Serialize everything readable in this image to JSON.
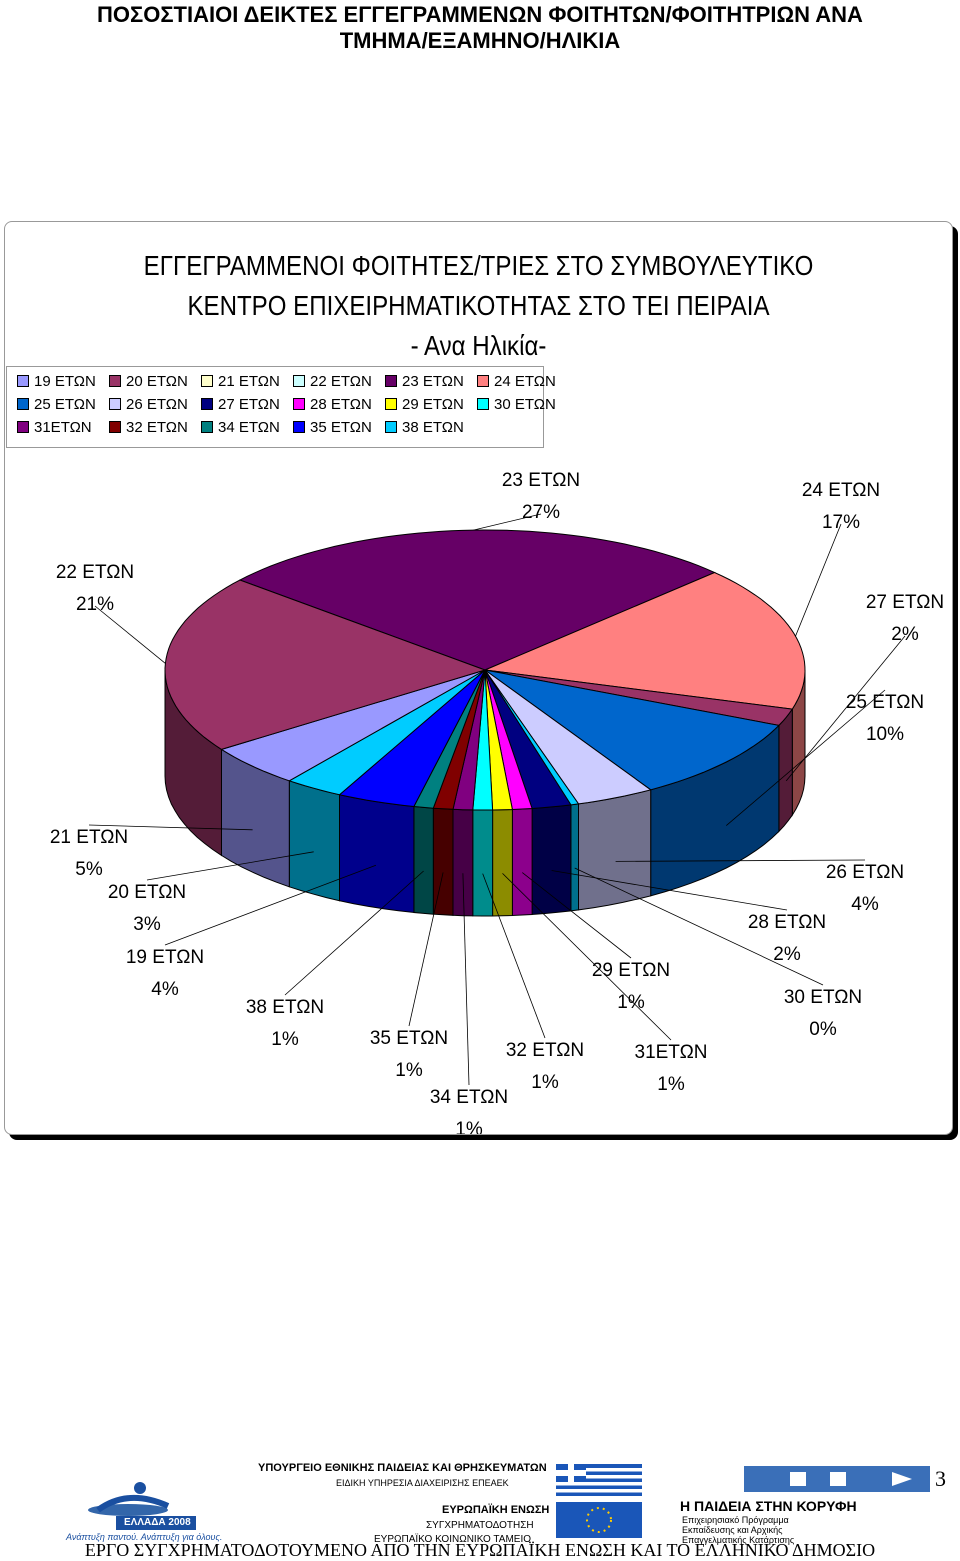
{
  "page": {
    "title_line1": "ΠΟΣΟΣΤΙΑΙΟΙ ΔΕΙΚΤΕΣ ΕΓΓΕΓΡΑΜΜΕΝΩΝ ΦΟΙΤΗΤΩΝ/ΦΟΙΤΗΤΡΙΩΝ ΑΝΑ",
    "title_line2": "ΤΜΗΜΑ/ΕΞΑΜΗΝΟ/ΗΛΙΚΙΑ",
    "page_number": "3",
    "footer": "ΕΡΓΟ ΣΥΓΧΡΗΜΑΤΟΔΟΤΟΥΜΕΝΟ ΑΠΟ ΤΗΝ ΕΥΡΩΠΑΪΚΗ ΕΝΩΣΗ ΚΑΙ ΤΟ ΕΛΛΗΝΙΚΟ ΔΗΜΟΣΙΟ"
  },
  "logos": {
    "ministry_line1": "ΥΠΟΥΡΓΕΙΟ ΕΘΝΙΚΗΣ ΠΑΙΔΕΙΑΣ ΚΑΙ ΘΡΗΣΚΕΥΜΑΤΩΝ",
    "ministry_line2": "ΕΙΔΙΚΗ ΥΠΗΡΕΣΙΑ ΔΙΑΧΕΙΡΙΣΗΣ ΕΠΕΑΕΚ",
    "eu_line1": "ΕΥΡΩΠΑΪΚΗ ΕΝΩΣΗ",
    "eu_line2": "ΣΥΓΧΡΗΜΑΤΟΔΟΤΗΣΗ",
    "eu_line3": "ΕΥΡΩΠΑΪΚΟ ΚΟΙΝΩΝΙΚΟ ΤΑΜΕΙΟ",
    "program_line1": "Η ΠΑΙΔΕΙΑ ΣΤΗΝ ΚΟΡΥΦΗ",
    "program_line2": "Επιχειρησιακό Πρόγραμμα",
    "program_line3": "Εκπαίδευσης και Αρχικής",
    "program_line4": "Επαγγελματικής Κατάρτισης",
    "greece_2008": "ΕΛΛΑΔΑ 2008",
    "greece_slogan": "Ανάπτυξη παντού. Ανάπτυξη για όλους."
  },
  "chart_data": {
    "type": "pie",
    "title_line1": "ΕΓΓΕΓΡΑΜΜΕΝΟΙ ΦΟΙΤΗΤΕΣ/ΤΡΙΕΣ ΣΤΟ ΣΥΜΒΟΥΛΕΥΤΙΚΟ",
    "title_line2": "ΚΕΝΤΡΟ ΕΠΙΧΕΙΡΗΜΑΤΙΚΟΤΗΤΑΣ ΣΤΟ ΤΕΙ ΠΕΙΡΑΙΑ",
    "title_line3": "- Ανα Ηλικία-",
    "three_d": true,
    "legend_position": "top-left",
    "slices": [
      {
        "label": "23 ΕΤΩΝ",
        "value": 27,
        "pct": "27%",
        "color": "#660066"
      },
      {
        "label": "24 ΕΤΩΝ",
        "value": 17,
        "pct": "17%",
        "color": "#FF8080"
      },
      {
        "label": "27 ΕΤΩΝ",
        "value": 2,
        "pct": "2%",
        "color": "#993366"
      },
      {
        "label": "25 ΕΤΩΝ",
        "value": 10,
        "pct": "10%",
        "color": "#0066CC"
      },
      {
        "label": "26 ΕΤΩΝ",
        "value": 4,
        "pct": "4%",
        "color": "#CCCCFF"
      },
      {
        "label": "30 ΕΤΩΝ",
        "value": 0.4,
        "pct": "0%",
        "color": "#00CCFF"
      },
      {
        "label": "28 ΕΤΩΝ",
        "value": 2,
        "pct": "2%",
        "color": "#000080"
      },
      {
        "label": "29 ΕΤΩΝ",
        "value": 1,
        "pct": "1%",
        "color": "#FF00FF"
      },
      {
        "label": "31ΕΤΩΝ",
        "value": 1,
        "pct": "1%",
        "color": "#FFFF00"
      },
      {
        "label": "32 ΕΤΩΝ",
        "value": 1,
        "pct": "1%",
        "color": "#00FFFF"
      },
      {
        "label": "34 ΕΤΩΝ",
        "value": 1,
        "pct": "1%",
        "color": "#800080"
      },
      {
        "label": "35 ΕΤΩΝ",
        "value": 1,
        "pct": "1%",
        "color": "#800000"
      },
      {
        "label": "38 ΕΤΩΝ",
        "value": 1,
        "pct": "1%",
        "color": "#008080"
      },
      {
        "label": "19 ΕΤΩΝ",
        "value": 4,
        "pct": "4%",
        "color": "#0000FF"
      },
      {
        "label": "20 ΕΤΩΝ",
        "value": 3,
        "pct": "3%",
        "color": "#00CCFF"
      },
      {
        "label": "21 ΕΤΩΝ",
        "value": 5,
        "pct": "5%",
        "color": "#9999FF"
      },
      {
        "label": "22 ΕΤΩΝ",
        "value": 21,
        "pct": "21%",
        "color": "#993366"
      }
    ],
    "legend": [
      {
        "label": "19 ΕΤΩΝ",
        "color": "#9999FF"
      },
      {
        "label": "20 ΕΤΩΝ",
        "color": "#993366"
      },
      {
        "label": "21 ΕΤΩΝ",
        "color": "#FFFFCC"
      },
      {
        "label": "22 ΕΤΩΝ",
        "color": "#CCFFFF"
      },
      {
        "label": "23 ΕΤΩΝ",
        "color": "#660066"
      },
      {
        "label": "24 ΕΤΩΝ",
        "color": "#FF8080"
      },
      {
        "label": "25 ΕΤΩΝ",
        "color": "#0066CC"
      },
      {
        "label": "26 ΕΤΩΝ",
        "color": "#CCCCFF"
      },
      {
        "label": "27 ΕΤΩΝ",
        "color": "#000080"
      },
      {
        "label": "28 ΕΤΩΝ",
        "color": "#FF00FF"
      },
      {
        "label": "29 ΕΤΩΝ",
        "color": "#FFFF00"
      },
      {
        "label": "30 ΕΤΩΝ",
        "color": "#00FFFF"
      },
      {
        "label": "31ΕΤΩΝ",
        "color": "#800080"
      },
      {
        "label": "32 ΕΤΩΝ",
        "color": "#800000"
      },
      {
        "label": "34 ΕΤΩΝ",
        "color": "#008080"
      },
      {
        "label": "35 ΕΤΩΝ",
        "color": "#0000FF"
      },
      {
        "label": "38 ΕΤΩΝ",
        "color": "#00CCFF"
      }
    ]
  }
}
